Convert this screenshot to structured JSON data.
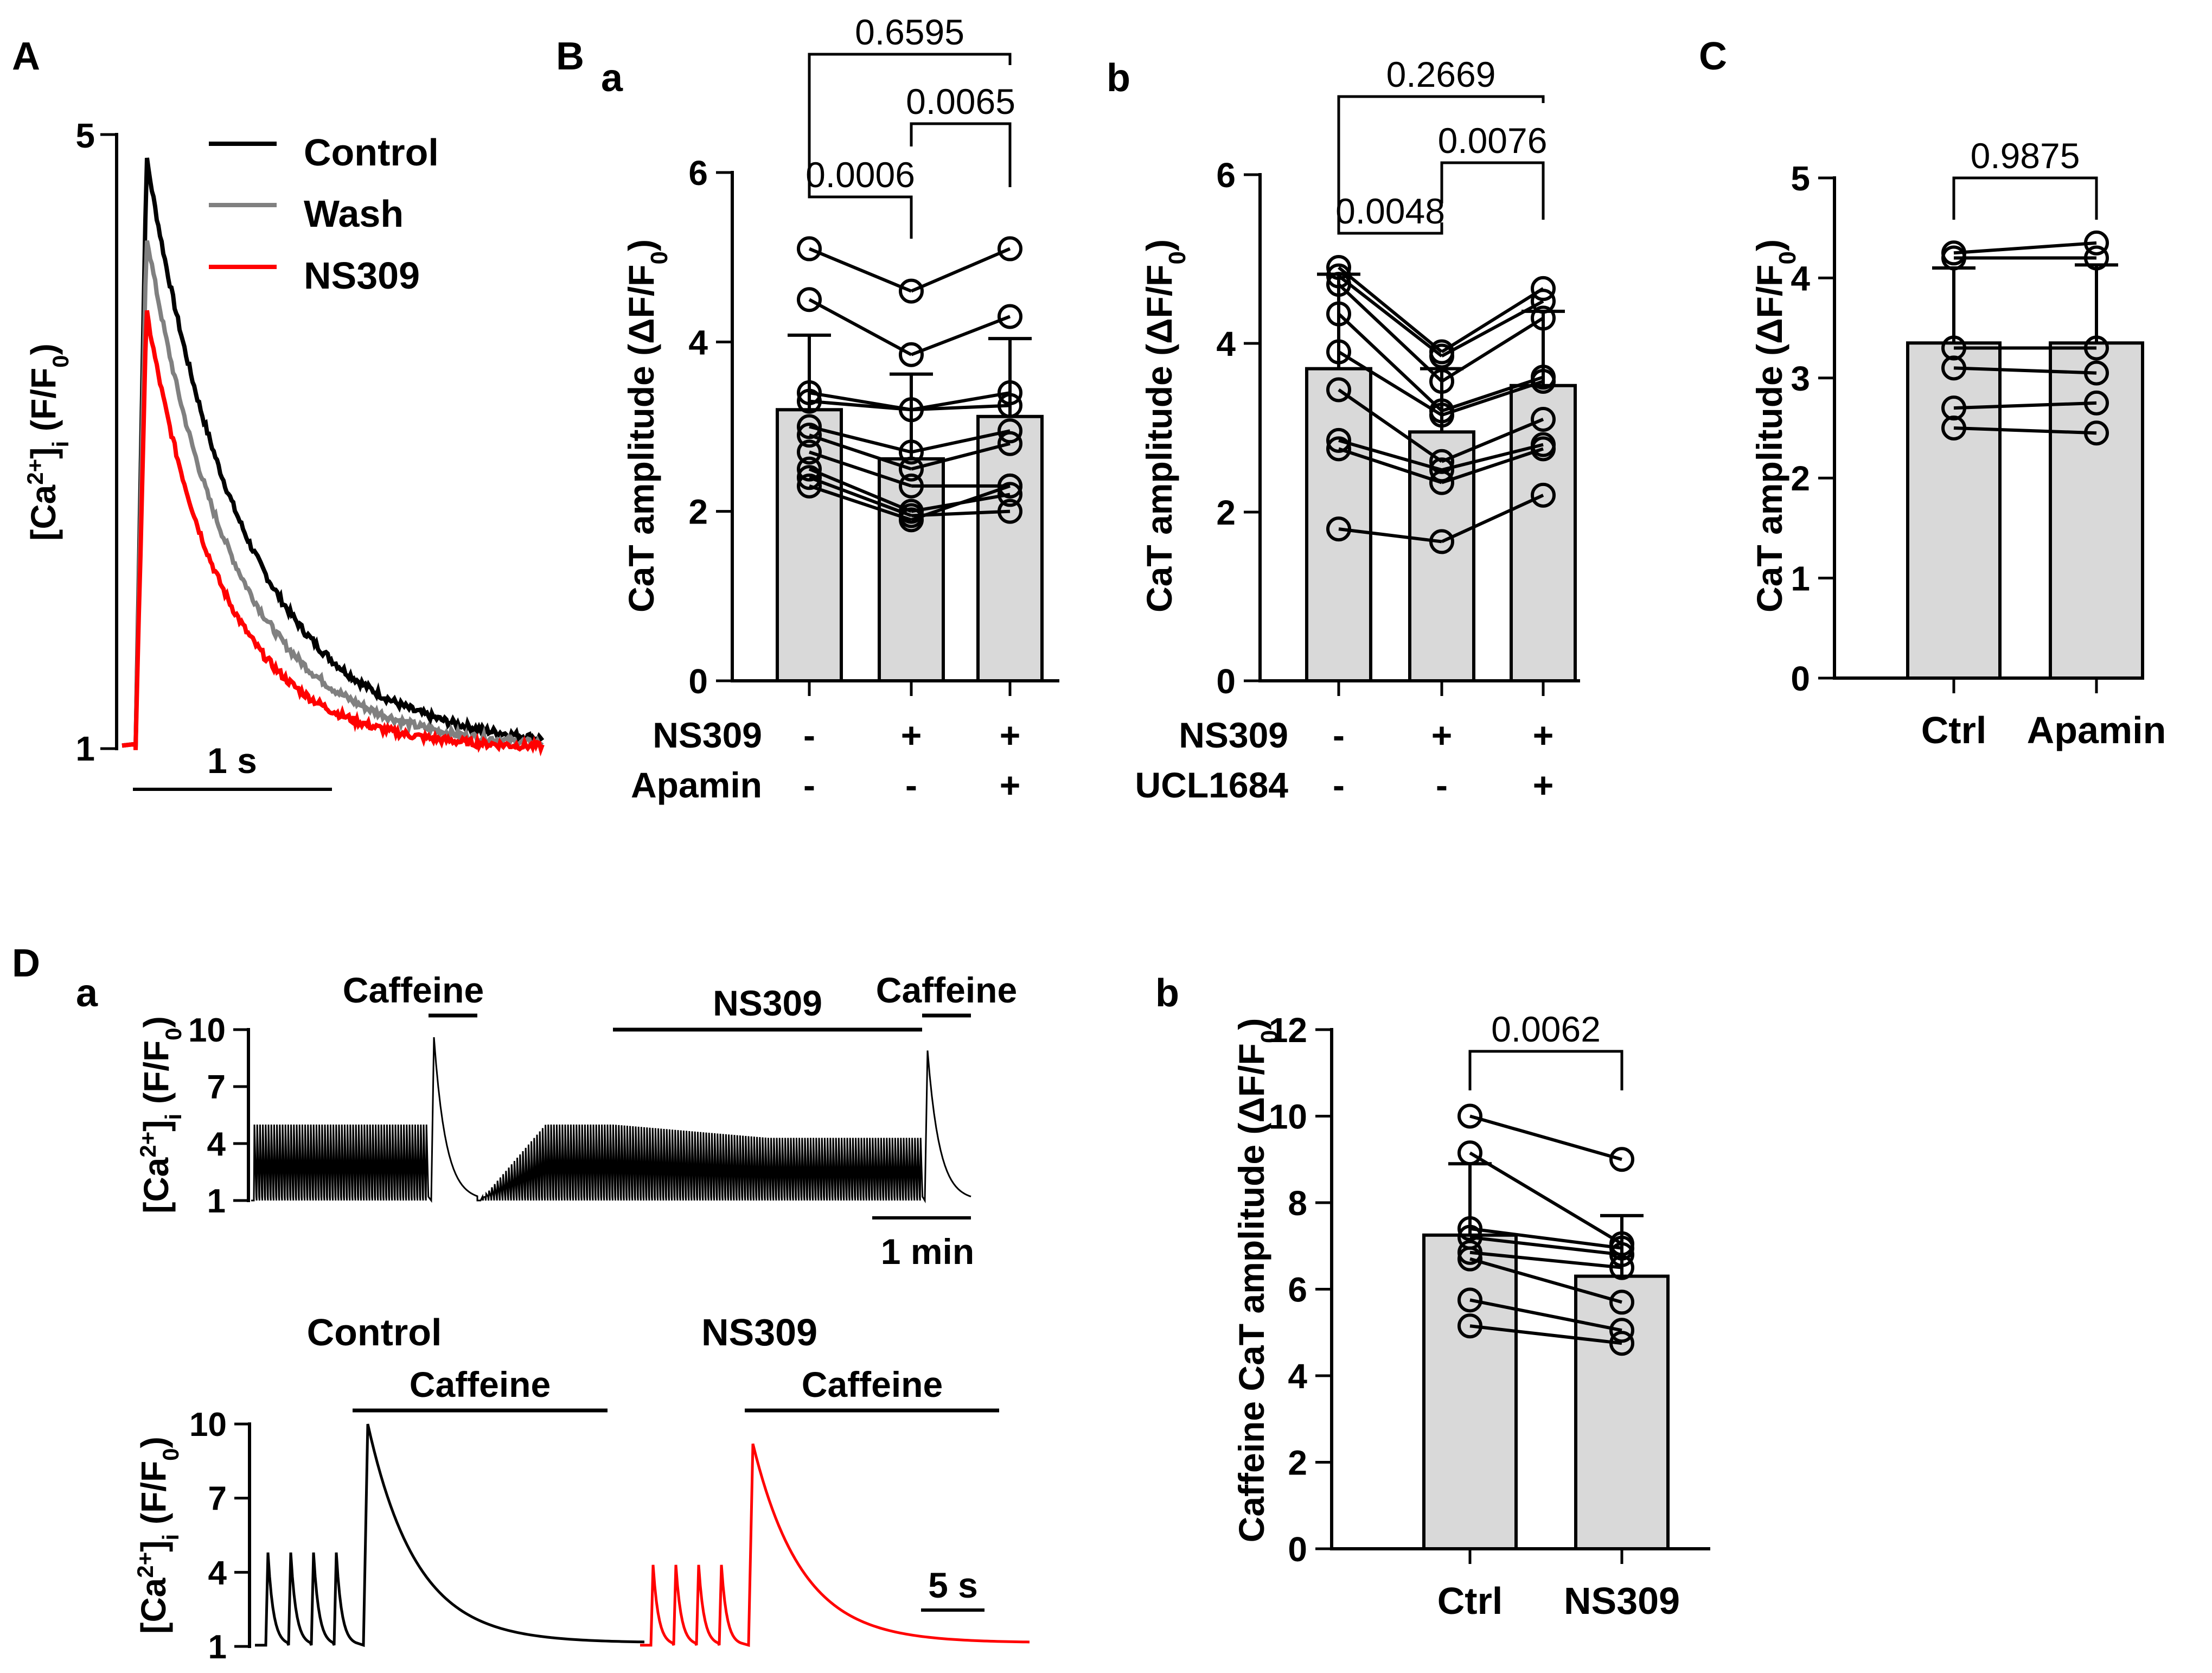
{
  "colors": {
    "control": "#000000",
    "wash": "#808080",
    "ns309": "#ff0000",
    "bar_fill": "#d9d9d9"
  },
  "panel_labels": {
    "A": "A",
    "B": "B",
    "a": "a",
    "b": "b",
    "C": "C",
    "D": "D",
    "Da": "a",
    "Db": "b"
  },
  "chart_data": [
    {
      "id": "A",
      "type": "line",
      "title": "",
      "ylabel": "[Ca2+]i (F/F0)",
      "yticks": [
        "1",
        "5"
      ],
      "ylim": [
        1,
        5
      ],
      "legend": [
        "Control",
        "Wash",
        "NS309"
      ],
      "legend_position": "top-right",
      "scale_bar": "1 s",
      "series": [
        {
          "name": "Control",
          "peak": 4.85,
          "baseline": 1.0
        },
        {
          "name": "Wash",
          "peak": 4.35,
          "baseline": 1.0
        },
        {
          "name": "NS309",
          "peak": 3.85,
          "baseline": 1.0
        }
      ]
    },
    {
      "id": "Ba",
      "type": "bar",
      "ylabel": "CaT amplitude (ΔF/F0)",
      "ylim": [
        0,
        6
      ],
      "yticks": [
        "0",
        "2",
        "4",
        "6"
      ],
      "conditions": [
        {
          "label": "NS309",
          "values": [
            "-",
            "+",
            "+"
          ]
        },
        {
          "label": "Apamin",
          "values": [
            "-",
            "-",
            "+"
          ]
        }
      ],
      "means": [
        3.2,
        2.62,
        3.12
      ],
      "errors": [
        0.88,
        1.0,
        0.92
      ],
      "paired": [
        [
          5.1,
          4.6,
          5.1
        ],
        [
          4.5,
          3.85,
          4.3
        ],
        [
          3.4,
          3.2,
          3.4
        ],
        [
          3.3,
          3.2,
          3.25
        ],
        [
          3.0,
          2.7,
          2.95
        ],
        [
          2.9,
          2.5,
          2.8
        ],
        [
          2.7,
          2.3,
          2.3
        ],
        [
          2.5,
          2.0,
          2.2
        ],
        [
          2.4,
          1.95,
          2.0
        ],
        [
          2.3,
          1.9,
          2.3
        ]
      ],
      "brackets": [
        {
          "from": 0,
          "to": 2,
          "label": "0.6595"
        },
        {
          "from": 1,
          "to": 2,
          "label": "0.0065"
        },
        {
          "from": 0,
          "to": 1,
          "label": "0.0006"
        }
      ]
    },
    {
      "id": "Bb",
      "type": "bar",
      "ylabel": "CaT amplitude (ΔF/F0)",
      "ylim": [
        0,
        6
      ],
      "yticks": [
        "0",
        "2",
        "4",
        "6"
      ],
      "conditions": [
        {
          "label": "NS309",
          "values": [
            "-",
            "+",
            "+"
          ]
        },
        {
          "label": "UCL1684",
          "values": [
            "-",
            "-",
            "+"
          ]
        }
      ],
      "means": [
        3.7,
        2.95,
        3.5
      ],
      "errors": [
        1.12,
        0.75,
        0.88
      ],
      "paired": [
        [
          4.9,
          3.9,
          4.65
        ],
        [
          4.8,
          3.85,
          4.5
        ],
        [
          4.7,
          3.55,
          4.3
        ],
        [
          4.35,
          3.2,
          3.6
        ],
        [
          3.9,
          3.15,
          3.55
        ],
        [
          3.45,
          2.6,
          3.1
        ],
        [
          2.85,
          2.5,
          2.8
        ],
        [
          2.75,
          2.35,
          2.75
        ],
        [
          1.8,
          1.65,
          2.2
        ]
      ],
      "brackets": [
        {
          "from": 0,
          "to": 2,
          "label": "0.2669"
        },
        {
          "from": 1,
          "to": 2,
          "label": "0.0076"
        },
        {
          "from": 0,
          "to": 1,
          "label": "0.0048"
        }
      ]
    },
    {
      "id": "C",
      "type": "bar",
      "ylabel": "CaT amplitude (ΔF/F0)",
      "ylim": [
        0,
        5
      ],
      "yticks": [
        "0",
        "1",
        "2",
        "3",
        "4",
        "5"
      ],
      "categories": [
        "Ctrl",
        "Apamin"
      ],
      "means": [
        3.35,
        3.35
      ],
      "errors": [
        0.75,
        0.78
      ],
      "paired": [
        [
          4.25,
          4.35
        ],
        [
          4.2,
          4.2
        ],
        [
          3.3,
          3.3
        ],
        [
          3.1,
          3.05
        ],
        [
          2.7,
          2.75
        ],
        [
          2.5,
          2.45
        ]
      ],
      "brackets": [
        {
          "from": 0,
          "to": 1,
          "label": "0.9875"
        }
      ]
    },
    {
      "id": "Da-top",
      "type": "line",
      "ylabel": "[Ca2+]i (F/F0)",
      "yticks": [
        "1",
        "4",
        "7",
        "10"
      ],
      "ylim": [
        1,
        10
      ],
      "annotations": [
        "Caffeine",
        "NS309",
        "Caffeine"
      ],
      "scale_bar": "1 min",
      "series": [
        {
          "name": "Control",
          "paced_peak": 5.0,
          "caffeine_peak": 9.6,
          "ns309_paced_peak": 4.3,
          "ns309_caffeine_peak": 8.9
        }
      ]
    },
    {
      "id": "Da-bottom",
      "type": "line",
      "ylabel": "[Ca2+]i (F/F0)",
      "yticks": [
        "1",
        "4",
        "7",
        "10"
      ],
      "ylim": [
        1,
        10
      ],
      "panels": [
        {
          "title": "Control",
          "annotation": "Caffeine",
          "paced_peak": 4.8,
          "caffeine_peak": 10.0
        },
        {
          "title": "NS309",
          "annotation": "Caffeine",
          "paced_peak": 4.3,
          "caffeine_peak": 9.2
        }
      ],
      "scale_bar": "5 s"
    },
    {
      "id": "Db",
      "type": "bar",
      "ylabel": "Caffeine CaT amplitude (ΔF/F0)",
      "ylim": [
        0,
        12
      ],
      "yticks": [
        "0",
        "2",
        "4",
        "6",
        "8",
        "10",
        "12"
      ],
      "categories": [
        "Ctrl",
        "NS309"
      ],
      "means": [
        7.25,
        6.3
      ],
      "errors": [
        1.65,
        1.4
      ],
      "paired": [
        [
          10.0,
          9.0
        ],
        [
          9.15,
          7.05
        ],
        [
          7.4,
          6.95
        ],
        [
          7.2,
          6.8
        ],
        [
          6.85,
          6.5
        ],
        [
          6.7,
          5.7
        ],
        [
          5.75,
          5.05
        ],
        [
          5.15,
          4.75
        ]
      ],
      "brackets": [
        {
          "from": 0,
          "to": 1,
          "label": "0.0062"
        }
      ]
    }
  ]
}
